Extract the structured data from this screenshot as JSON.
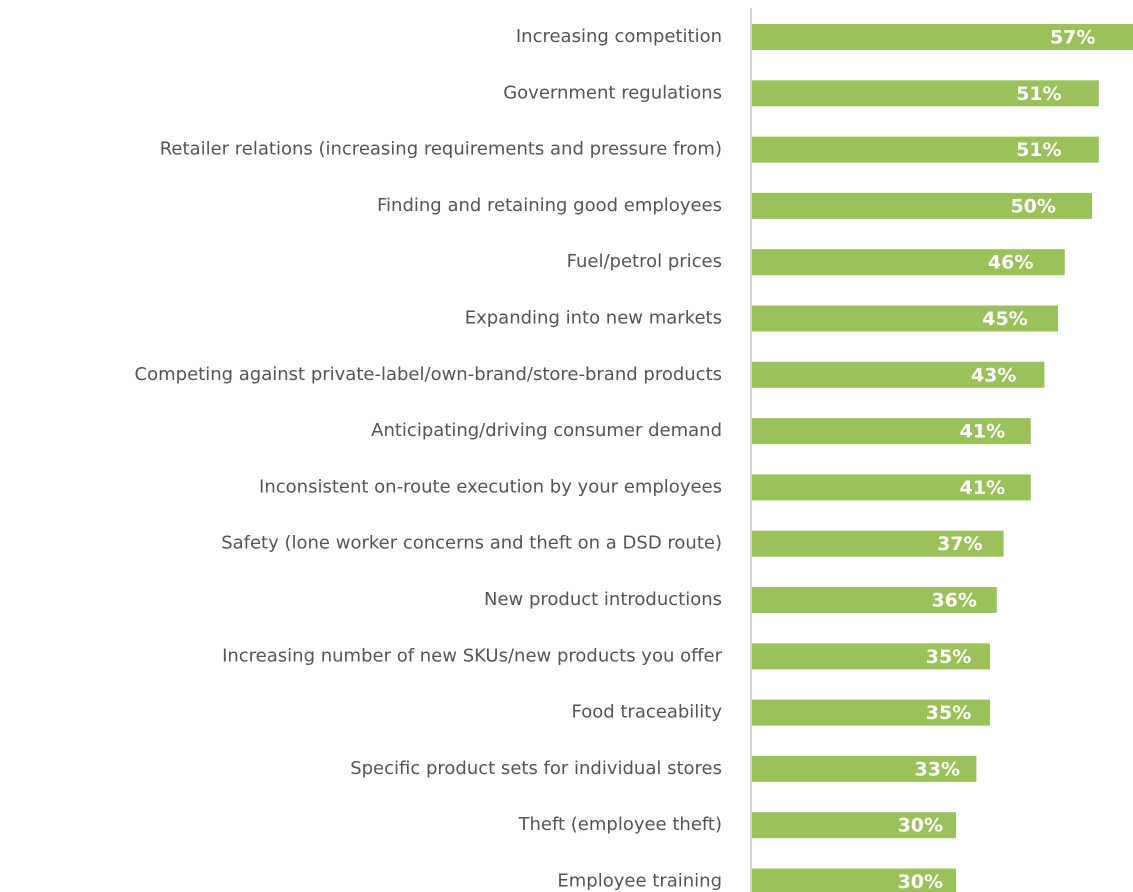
{
  "chart_data": {
    "type": "bar",
    "orientation": "horizontal",
    "categories": [
      "Increasing competition",
      "Government regulations",
      "Retailer relations (increasing requirements and pressure from)",
      "Finding and retaining good employees",
      "Fuel/petrol prices",
      "Expanding into new markets",
      "Competing against private-label/own-brand/store-brand products",
      "Anticipating/driving consumer demand",
      "Inconsistent on-route execution by your employees",
      "Safety (lone worker concerns and theft on a DSD route)",
      "New product introductions",
      "Increasing number of new SKUs/new products you offer",
      "Food traceability",
      "Specific product sets for individual stores",
      "Theft (employee theft)",
      "Employee training"
    ],
    "values": [
      57,
      51,
      51,
      50,
      46,
      45,
      43,
      41,
      41,
      37,
      36,
      35,
      35,
      33,
      30,
      30
    ],
    "value_labels": [
      "57%",
      "51%",
      "51%",
      "50%",
      "46%",
      "45%",
      "43%",
      "41%",
      "41%",
      "37%",
      "36%",
      "35%",
      "35%",
      "33%",
      "30%",
      "30%"
    ],
    "color": "#9bc25a"
  }
}
